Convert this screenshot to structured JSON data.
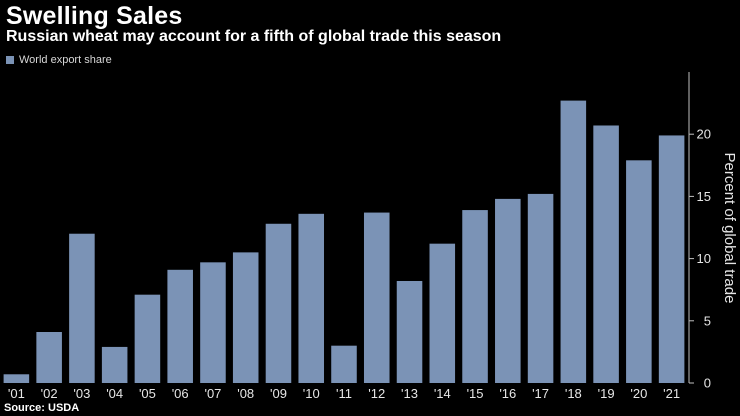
{
  "header": {
    "title": "Swelling Sales",
    "subtitle": "Russian wheat may account for a fifth of global trade this season"
  },
  "legend": {
    "label": "World export share"
  },
  "footer": {
    "source": "Source: USDA"
  },
  "colors": {
    "bar": "#7b93b6",
    "axis": "#bfbfbf",
    "background": "#000000"
  },
  "chart_data": {
    "type": "bar",
    "title": "Swelling Sales",
    "subtitle": "Russian wheat may account for a fifth of global trade this season",
    "categories": [
      "'01",
      "'02",
      "'03",
      "'04",
      "'05",
      "'06",
      "'07",
      "'08",
      "'09",
      "'10",
      "'11",
      "'12",
      "'13",
      "'14",
      "'15",
      "'16",
      "'17",
      "'18",
      "'19",
      "'20",
      "'21"
    ],
    "series": [
      {
        "name": "World export share",
        "values": [
          0.7,
          4.1,
          12.0,
          2.9,
          7.1,
          9.1,
          9.7,
          10.5,
          12.8,
          13.6,
          3.0,
          13.7,
          8.2,
          11.2,
          13.9,
          14.8,
          15.2,
          22.7,
          20.7,
          17.9,
          19.9
        ]
      }
    ],
    "xlabel": "",
    "ylabel": "Percent of global trade",
    "ylim": [
      0,
      25
    ],
    "yticks": [
      0,
      5,
      10,
      15,
      20
    ],
    "grid": false,
    "legend_position": "top-left",
    "yaxis_side": "right"
  }
}
